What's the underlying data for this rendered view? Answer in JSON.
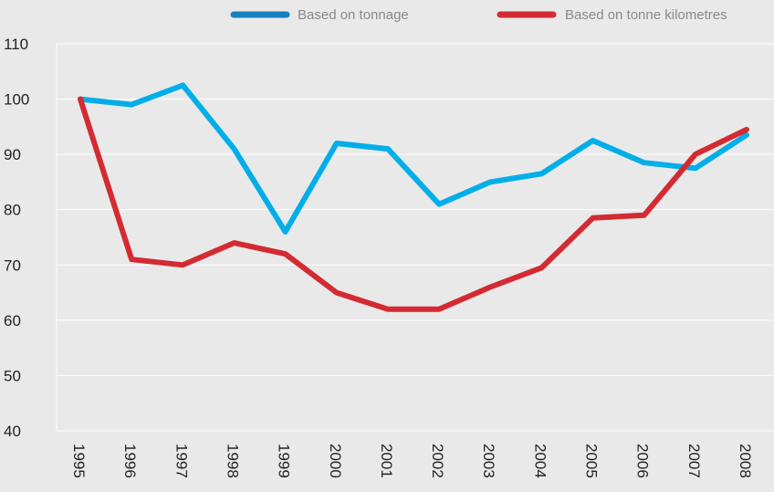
{
  "chart_data": {
    "type": "line",
    "title": "",
    "xlabel": "",
    "ylabel": "",
    "ylim": [
      40,
      110
    ],
    "yticks": [
      40,
      50,
      60,
      70,
      80,
      90,
      100,
      110
    ],
    "categories": [
      "1995",
      "1996",
      "1997",
      "1998",
      "1999",
      "2000",
      "2001",
      "2002",
      "2003",
      "2004",
      "2005",
      "2006",
      "2007",
      "2008"
    ],
    "grid": true,
    "legend_position": "top-right",
    "series": [
      {
        "name": "Based on tonnage",
        "color": "#00aee8",
        "legend_color": "#1a7fc1",
        "values": [
          100,
          99,
          102.5,
          91,
          76,
          92,
          91,
          81,
          85,
          86.5,
          92.5,
          88.5,
          87.5,
          93.5
        ]
      },
      {
        "name": "Based on tonne kilometres",
        "color": "#d42a31",
        "legend_color": "#d42a31",
        "values": [
          100,
          71,
          70,
          74,
          72,
          65,
          62,
          62,
          66,
          69.5,
          78.5,
          79,
          90,
          94.5
        ]
      }
    ]
  }
}
